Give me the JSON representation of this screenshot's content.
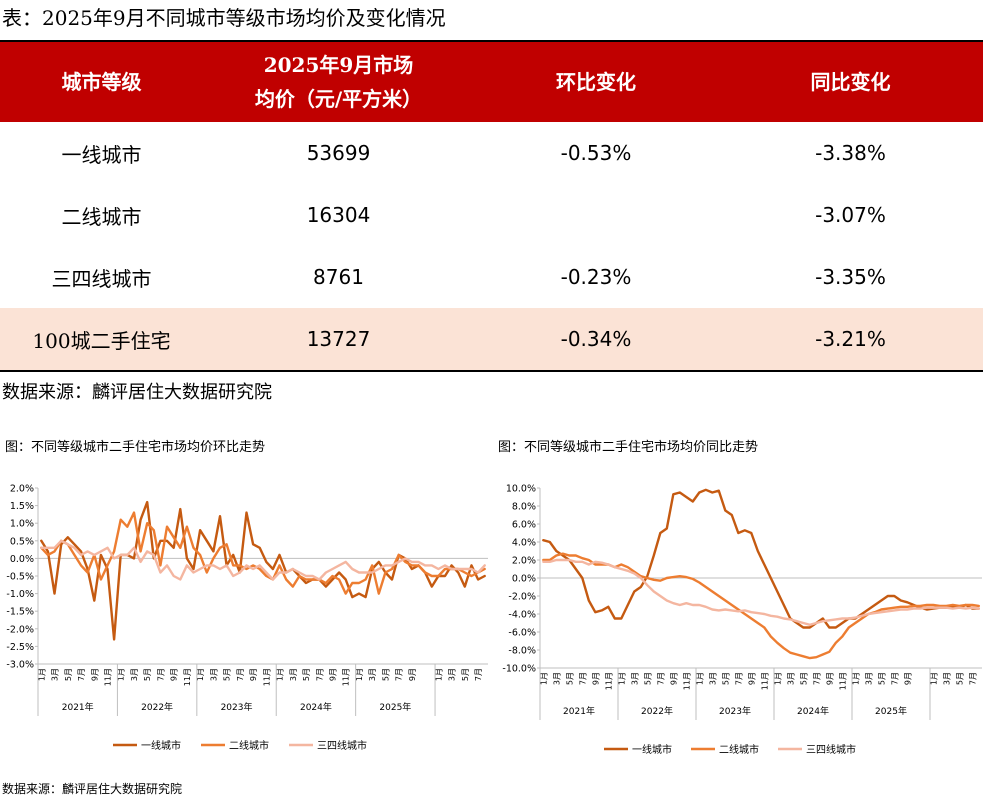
{
  "title": "表：2025年9月不同城市等级市场均价及变化情况",
  "table": {
    "headers": [
      "城市等级",
      "2025年9月市场",
      "均价（元/平方米）",
      "环比变化",
      "同比变化"
    ],
    "rows": [
      {
        "name": "一线城市",
        "price": "53699",
        "mom": "-0.53%",
        "yoy": "-3.38%"
      },
      {
        "name": "二线城市",
        "price": "16304",
        "mom": "",
        "yoy": "-3.07%"
      },
      {
        "name": "三四线城市",
        "price": "8761",
        "mom": "-0.23%",
        "yoy": "-3.35%"
      },
      {
        "name": "100城二手住宅",
        "price": "13727",
        "mom": "-0.34%",
        "yoy": "-3.21%"
      }
    ]
  },
  "source_table": "数据来源：麟评居住大数据研究院",
  "source_bottom": "数据来源：麟评居住大数据研究院",
  "colors": {
    "header_bg": "#c00000",
    "highlight_row": "#fbe3d6",
    "tier1": "#c55a11",
    "tier2": "#ed7d31",
    "tier3": "#f4b6a0"
  },
  "chart_data": [
    {
      "type": "line",
      "title": "图：不同等级城市二手住宅市场均价环比走势",
      "ylim": [
        -3.0,
        2.0
      ],
      "yticks": [
        2.0,
        1.5,
        1.0,
        0.5,
        0.0,
        -0.5,
        -1.0,
        -1.5,
        -2.0,
        -2.5,
        -3.0
      ],
      "yticklabels": [
        "2.0%",
        "1.5%",
        "1.0%",
        "0.5%",
        "0.0%",
        "-0.5%",
        "-1.0%",
        "-1.5%",
        "-2.0%",
        "-2.5%",
        "-3.0%"
      ],
      "month_labels": [
        "1月",
        "3月",
        "5月",
        "7月",
        "9月",
        "11月"
      ],
      "last_year_month_labels": [
        "1月",
        "3月",
        "5月",
        "7月",
        "9月"
      ],
      "years": [
        "2021年",
        "2022年",
        "2023年",
        "2024年",
        "2025年"
      ],
      "legend": [
        "一线城市",
        "二线城市",
        "三四线城市"
      ],
      "series": [
        {
          "name": "一线城市",
          "values": [
            0.5,
            0.2,
            -1.0,
            0.4,
            0.6,
            0.4,
            0.2,
            -0.3,
            -1.2,
            0.1,
            -0.3,
            -2.3,
            0.1,
            0.1,
            0.0,
            1.1,
            1.6,
            0.0,
            0.5,
            0.5,
            0.3,
            1.4,
            0.0,
            -0.3,
            0.8,
            0.5,
            0.2,
            1.2,
            -0.2,
            0.1,
            -0.4,
            1.3,
            0.4,
            0.3,
            -0.1,
            -0.3,
            0.1,
            -0.4,
            -0.3,
            -0.5,
            -0.7,
            -0.6,
            -0.6,
            -0.8,
            -0.6,
            -0.4,
            -0.6,
            -1.1,
            -1.0,
            -1.1,
            -0.3,
            -0.1,
            -0.4,
            -0.6,
            0.1,
            0.0,
            -0.3,
            -0.2,
            -0.4,
            -0.8,
            -0.5,
            -0.5,
            -0.2,
            -0.4,
            -0.8,
            -0.2,
            -0.6,
            -0.5
          ]
        },
        {
          "name": "二线城市",
          "values": [
            0.3,
            0.1,
            0.2,
            0.5,
            0.4,
            0.1,
            -0.2,
            -0.4,
            0.1,
            -0.6,
            -0.2,
            0.2,
            1.1,
            0.9,
            1.3,
            0.2,
            1.0,
            0.8,
            -0.2,
            0.9,
            0.6,
            0.3,
            0.9,
            0.3,
            0.1,
            -0.4,
            0.0,
            0.3,
            0.4,
            -0.2,
            -0.2,
            -0.3,
            -0.2,
            -0.3,
            -0.5,
            -0.6,
            -0.2,
            -0.6,
            -0.8,
            -0.5,
            -0.6,
            -0.6,
            -0.6,
            -0.7,
            -0.5,
            -0.6,
            -1.0,
            -0.7,
            -0.7,
            -0.6,
            -0.2,
            -1.0,
            -0.4,
            -0.3,
            0.1,
            -0.1,
            -0.2,
            -0.2,
            -0.4,
            -0.5,
            -0.5,
            -0.3,
            -0.3,
            -0.3,
            -0.4,
            -0.5,
            -0.4,
            -0.3
          ]
        },
        {
          "name": "三四线城市",
          "values": [
            0.3,
            0.3,
            0.3,
            0.5,
            0.4,
            0.3,
            0.1,
            0.2,
            0.1,
            0.2,
            0.3,
            0.0,
            0.1,
            0.1,
            0.3,
            -0.1,
            0.2,
            0.1,
            -0.4,
            -0.2,
            -0.5,
            -0.6,
            -0.2,
            -0.4,
            -0.3,
            -0.2,
            -0.2,
            -0.3,
            -0.2,
            -0.5,
            -0.4,
            -0.2,
            -0.3,
            -0.2,
            -0.4,
            -0.6,
            -0.4,
            -0.4,
            -0.3,
            -0.4,
            -0.5,
            -0.5,
            -0.6,
            -0.4,
            -0.3,
            -0.2,
            -0.1,
            -0.3,
            -0.4,
            -0.4,
            -0.4,
            -0.3,
            -0.2,
            -0.2,
            -0.1,
            0.0,
            -0.1,
            -0.1,
            -0.2,
            -0.2,
            -0.3,
            -0.2,
            -0.3,
            -0.3,
            -0.3,
            -0.3,
            -0.4,
            -0.2
          ]
        }
      ]
    },
    {
      "type": "line",
      "title": "图：不同等级城市二手住宅市场均价同比走势",
      "ylim": [
        -10.0,
        10.0
      ],
      "yticks": [
        10.0,
        8.0,
        6.0,
        4.0,
        2.0,
        0.0,
        -2.0,
        -4.0,
        -6.0,
        -8.0,
        -10.0
      ],
      "yticklabels": [
        "10.0%",
        "8.0%",
        "6.0%",
        "4.0%",
        "2.0%",
        "0.0%",
        "-2.0%",
        "-4.0%",
        "-6.0%",
        "-8.0%",
        "-10.0%"
      ],
      "month_labels": [
        "1月",
        "3月",
        "5月",
        "7月",
        "9月",
        "11月"
      ],
      "last_year_month_labels": [
        "1月",
        "3月",
        "5月",
        "7月",
        "9月"
      ],
      "years": [
        "2021年",
        "2022年",
        "2023年",
        "2024年",
        "2025年"
      ],
      "legend": [
        "一线城市",
        "二线城市",
        "三四线城市"
      ],
      "series": [
        {
          "name": "一线城市",
          "values": [
            4.2,
            4.0,
            3.0,
            2.5,
            2.0,
            1.0,
            0.0,
            -2.5,
            -3.8,
            -3.6,
            -3.2,
            -4.5,
            -4.5,
            -3.0,
            -1.5,
            -1.0,
            0.2,
            2.5,
            5.0,
            5.5,
            9.3,
            9.5,
            9.0,
            8.5,
            9.5,
            9.8,
            9.5,
            9.7,
            7.5,
            7.0,
            5.0,
            5.3,
            5.0,
            3.0,
            1.5,
            0.0,
            -1.5,
            -3.0,
            -4.5,
            -5.0,
            -5.5,
            -5.5,
            -5.0,
            -4.5,
            -5.5,
            -5.5,
            -5.0,
            -4.5,
            -4.5,
            -4.0,
            -3.5,
            -3.0,
            -2.5,
            -2.0,
            -2.0,
            -2.5,
            -2.7,
            -3.0,
            -3.3,
            -3.5,
            -3.4,
            -3.3,
            -3.3,
            -3.2,
            -3.3,
            -3.0,
            -3.4,
            -3.4
          ]
        },
        {
          "name": "二线城市",
          "values": [
            2.0,
            2.0,
            2.5,
            2.7,
            2.5,
            2.5,
            2.2,
            2.0,
            1.5,
            1.5,
            1.5,
            1.2,
            1.5,
            1.2,
            0.7,
            0.2,
            0.0,
            -0.2,
            -0.3,
            0.0,
            0.1,
            0.2,
            0.1,
            -0.1,
            -0.5,
            -1.0,
            -1.5,
            -2.0,
            -2.5,
            -3.0,
            -3.5,
            -4.0,
            -4.5,
            -5.0,
            -5.5,
            -6.5,
            -7.2,
            -7.8,
            -8.3,
            -8.5,
            -8.7,
            -8.9,
            -8.8,
            -8.5,
            -8.2,
            -7.2,
            -6.5,
            -5.5,
            -5.0,
            -4.5,
            -4.0,
            -3.8,
            -3.5,
            -3.4,
            -3.3,
            -3.2,
            -3.2,
            -3.1,
            -3.1,
            -3.0,
            -3.0,
            -3.1,
            -3.1,
            -3.0,
            -3.1,
            -3.0,
            -3.0,
            -3.1
          ]
        },
        {
          "name": "三四线城市",
          "values": [
            1.8,
            1.8,
            2.0,
            2.0,
            2.0,
            1.8,
            1.8,
            1.5,
            1.8,
            1.7,
            1.5,
            1.2,
            1.0,
            0.8,
            0.5,
            0.0,
            -0.8,
            -1.5,
            -2.0,
            -2.5,
            -2.8,
            -3.0,
            -2.8,
            -3.0,
            -3.0,
            -3.2,
            -3.5,
            -3.6,
            -3.5,
            -3.6,
            -3.7,
            -3.6,
            -3.8,
            -3.9,
            -4.0,
            -4.2,
            -4.3,
            -4.5,
            -4.6,
            -4.8,
            -5.0,
            -5.2,
            -5.0,
            -4.8,
            -4.7,
            -4.6,
            -4.5,
            -4.5,
            -4.4,
            -4.2,
            -4.0,
            -3.9,
            -3.8,
            -3.7,
            -3.6,
            -3.5,
            -3.5,
            -3.4,
            -3.4,
            -3.3,
            -3.3,
            -3.3,
            -3.3,
            -3.4,
            -3.3,
            -3.4,
            -3.3,
            -3.4
          ]
        }
      ]
    }
  ]
}
